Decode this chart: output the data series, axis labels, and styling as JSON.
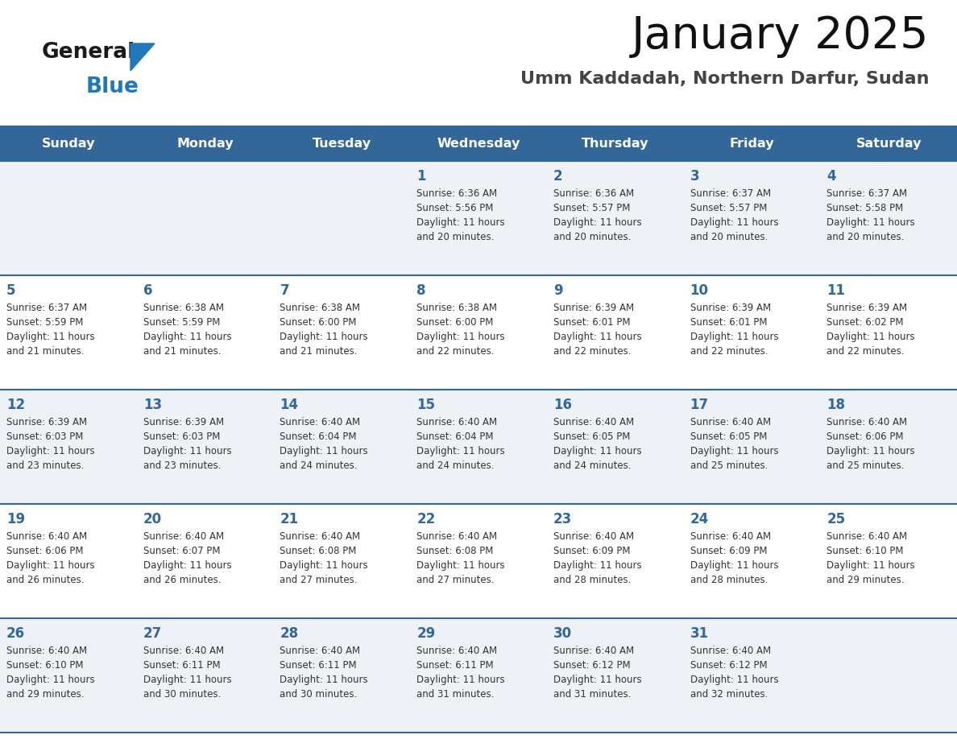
{
  "title": "January 2025",
  "subtitle": "Umm Kaddadah, Northern Darfur, Sudan",
  "days_of_week": [
    "Sunday",
    "Monday",
    "Tuesday",
    "Wednesday",
    "Thursday",
    "Friday",
    "Saturday"
  ],
  "header_bg": "#336699",
  "header_text": "#ffffff",
  "row_bg_light": "#eef2f7",
  "row_bg_white": "#ffffff",
  "separator_color": "#336699",
  "day_number_color": "#336699",
  "text_color": "#333333",
  "logo_general_color": "#1a1a1a",
  "logo_blue_color": "#2277bb",
  "logo_triangle_color": "#2277bb",
  "calendar_data": [
    [
      null,
      null,
      null,
      {
        "day": 1,
        "sunrise": "6:36 AM",
        "sunset": "5:56 PM",
        "daylight": "11 hours and 20 minutes."
      },
      {
        "day": 2,
        "sunrise": "6:36 AM",
        "sunset": "5:57 PM",
        "daylight": "11 hours and 20 minutes."
      },
      {
        "day": 3,
        "sunrise": "6:37 AM",
        "sunset": "5:57 PM",
        "daylight": "11 hours and 20 minutes."
      },
      {
        "day": 4,
        "sunrise": "6:37 AM",
        "sunset": "5:58 PM",
        "daylight": "11 hours and 20 minutes."
      }
    ],
    [
      {
        "day": 5,
        "sunrise": "6:37 AM",
        "sunset": "5:59 PM",
        "daylight": "11 hours and 21 minutes."
      },
      {
        "day": 6,
        "sunrise": "6:38 AM",
        "sunset": "5:59 PM",
        "daylight": "11 hours and 21 minutes."
      },
      {
        "day": 7,
        "sunrise": "6:38 AM",
        "sunset": "6:00 PM",
        "daylight": "11 hours and 21 minutes."
      },
      {
        "day": 8,
        "sunrise": "6:38 AM",
        "sunset": "6:00 PM",
        "daylight": "11 hours and 22 minutes."
      },
      {
        "day": 9,
        "sunrise": "6:39 AM",
        "sunset": "6:01 PM",
        "daylight": "11 hours and 22 minutes."
      },
      {
        "day": 10,
        "sunrise": "6:39 AM",
        "sunset": "6:01 PM",
        "daylight": "11 hours and 22 minutes."
      },
      {
        "day": 11,
        "sunrise": "6:39 AM",
        "sunset": "6:02 PM",
        "daylight": "11 hours and 22 minutes."
      }
    ],
    [
      {
        "day": 12,
        "sunrise": "6:39 AM",
        "sunset": "6:03 PM",
        "daylight": "11 hours and 23 minutes."
      },
      {
        "day": 13,
        "sunrise": "6:39 AM",
        "sunset": "6:03 PM",
        "daylight": "11 hours and 23 minutes."
      },
      {
        "day": 14,
        "sunrise": "6:40 AM",
        "sunset": "6:04 PM",
        "daylight": "11 hours and 24 minutes."
      },
      {
        "day": 15,
        "sunrise": "6:40 AM",
        "sunset": "6:04 PM",
        "daylight": "11 hours and 24 minutes."
      },
      {
        "day": 16,
        "sunrise": "6:40 AM",
        "sunset": "6:05 PM",
        "daylight": "11 hours and 24 minutes."
      },
      {
        "day": 17,
        "sunrise": "6:40 AM",
        "sunset": "6:05 PM",
        "daylight": "11 hours and 25 minutes."
      },
      {
        "day": 18,
        "sunrise": "6:40 AM",
        "sunset": "6:06 PM",
        "daylight": "11 hours and 25 minutes."
      }
    ],
    [
      {
        "day": 19,
        "sunrise": "6:40 AM",
        "sunset": "6:06 PM",
        "daylight": "11 hours and 26 minutes."
      },
      {
        "day": 20,
        "sunrise": "6:40 AM",
        "sunset": "6:07 PM",
        "daylight": "11 hours and 26 minutes."
      },
      {
        "day": 21,
        "sunrise": "6:40 AM",
        "sunset": "6:08 PM",
        "daylight": "11 hours and 27 minutes."
      },
      {
        "day": 22,
        "sunrise": "6:40 AM",
        "sunset": "6:08 PM",
        "daylight": "11 hours and 27 minutes."
      },
      {
        "day": 23,
        "sunrise": "6:40 AM",
        "sunset": "6:09 PM",
        "daylight": "11 hours and 28 minutes."
      },
      {
        "day": 24,
        "sunrise": "6:40 AM",
        "sunset": "6:09 PM",
        "daylight": "11 hours and 28 minutes."
      },
      {
        "day": 25,
        "sunrise": "6:40 AM",
        "sunset": "6:10 PM",
        "daylight": "11 hours and 29 minutes."
      }
    ],
    [
      {
        "day": 26,
        "sunrise": "6:40 AM",
        "sunset": "6:10 PM",
        "daylight": "11 hours and 29 minutes."
      },
      {
        "day": 27,
        "sunrise": "6:40 AM",
        "sunset": "6:11 PM",
        "daylight": "11 hours and 30 minutes."
      },
      {
        "day": 28,
        "sunrise": "6:40 AM",
        "sunset": "6:11 PM",
        "daylight": "11 hours and 30 minutes."
      },
      {
        "day": 29,
        "sunrise": "6:40 AM",
        "sunset": "6:11 PM",
        "daylight": "11 hours and 31 minutes."
      },
      {
        "day": 30,
        "sunrise": "6:40 AM",
        "sunset": "6:12 PM",
        "daylight": "11 hours and 31 minutes."
      },
      {
        "day": 31,
        "sunrise": "6:40 AM",
        "sunset": "6:12 PM",
        "daylight": "11 hours and 32 minutes."
      },
      null
    ]
  ]
}
